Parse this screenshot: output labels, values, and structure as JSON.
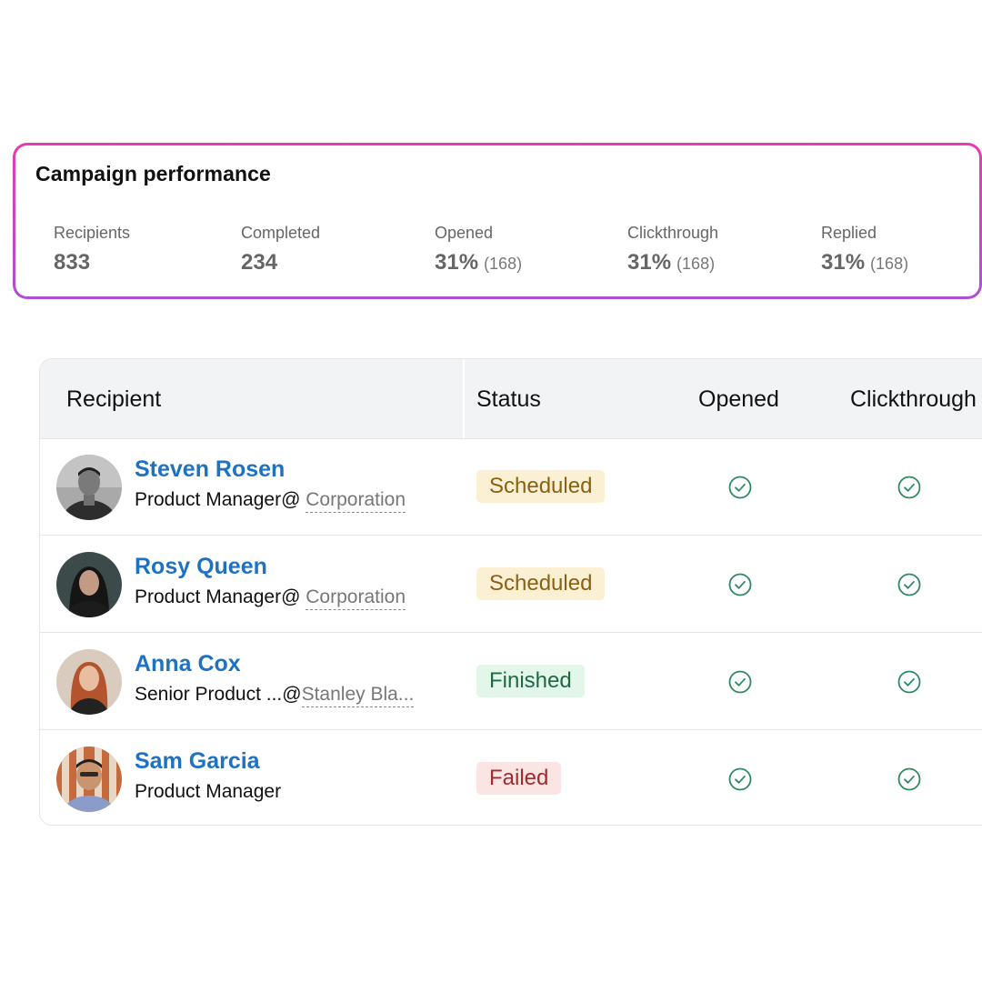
{
  "performance": {
    "title": "Campaign performance",
    "metrics": [
      {
        "label": "Recipients",
        "value": "833",
        "sub": ""
      },
      {
        "label": "Completed",
        "value": "234",
        "sub": ""
      },
      {
        "label": "Opened",
        "value": "31%",
        "sub": "(168)"
      },
      {
        "label": "Clickthrough",
        "value": "31%",
        "sub": "(168)"
      },
      {
        "label": "Replied",
        "value": "31%",
        "sub": "(168)"
      }
    ]
  },
  "table": {
    "columns": [
      "Recipient",
      "Status",
      "Opened",
      "Clickthrough"
    ],
    "rows": [
      {
        "name": "Steven Rosen",
        "role": "Product Manager@",
        "org": "Corporation",
        "status": "Scheduled",
        "opened": true,
        "clickthrough": true
      },
      {
        "name": "Rosy Queen",
        "role": "Product Manager@",
        "org": "Corporation",
        "status": "Scheduled",
        "opened": true,
        "clickthrough": true
      },
      {
        "name": "Anna Cox",
        "role": "Senior Product ...@",
        "org": "Stanley Bla...",
        "status": "Finished",
        "opened": true,
        "clickthrough": true
      },
      {
        "name": "Sam Garcia",
        "role": "Product Manager",
        "org": "",
        "status": "Failed",
        "opened": true,
        "clickthrough": true
      }
    ]
  },
  "colors": {
    "card_gradient_start": "#e83ab2",
    "card_gradient_end": "#b04fd4",
    "name_link": "#1f72c1",
    "check_green": "#2e8b60",
    "scheduled_bg": "#fbf0d3",
    "finished_bg": "#e2f6ea",
    "failed_bg": "#fbe4e4"
  },
  "icons": {
    "opened": "check-circle-icon",
    "clickthrough": "check-circle-icon"
  }
}
